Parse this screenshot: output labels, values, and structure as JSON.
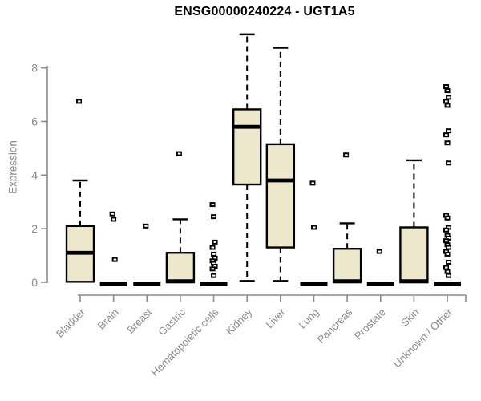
{
  "page": {
    "title": "ENSG00000240224 - UGT1A5"
  },
  "chart_data": {
    "type": "box",
    "title": "ENSG00000240224 - UGT1A5",
    "xlabel": "",
    "ylabel": "Expression",
    "ylim": [
      0,
      9.3
    ],
    "yticks": [
      0,
      2,
      4,
      6,
      8
    ],
    "grid": false,
    "legend": "none",
    "categories": [
      "Bladder",
      "Brain",
      "Breast",
      "Gastric",
      "Hematopoietic cells",
      "Kidney",
      "Liver",
      "Lung",
      "Pancreas",
      "Prostate",
      "Skin",
      "Unknown / Other"
    ],
    "series": [
      {
        "category": "Bladder",
        "q1": 0.02,
        "median": 1.1,
        "q3": 2.1,
        "whisker_low": 0.02,
        "whisker_high": 3.8,
        "outliers": [
          6.75
        ]
      },
      {
        "category": "Brain",
        "q1": 0,
        "median": 0,
        "q3": 0,
        "whisker_low": 0,
        "whisker_high": 0,
        "outliers": [
          2.55,
          2.35,
          0.85
        ]
      },
      {
        "category": "Breast",
        "q1": 0,
        "median": 0,
        "q3": 0,
        "whisker_low": 0,
        "whisker_high": 0,
        "outliers": [
          2.1
        ]
      },
      {
        "category": "Gastric",
        "q1": 0,
        "median": 0.04,
        "q3": 1.1,
        "whisker_low": 0,
        "whisker_high": 2.35,
        "outliers": [
          4.8
        ]
      },
      {
        "category": "Hematopoietic cells",
        "q1": 0,
        "median": 0,
        "q3": 0,
        "whisker_low": 0,
        "whisker_high": 0,
        "outliers": [
          2.9,
          2.45,
          1.5,
          1.3,
          1.05,
          0.9,
          0.8,
          0.7,
          0.6,
          0.5,
          0.25
        ]
      },
      {
        "category": "Kidney",
        "q1": 3.65,
        "median": 5.8,
        "q3": 6.45,
        "whisker_low": 0.05,
        "whisker_high": 9.25,
        "outliers": []
      },
      {
        "category": "Liver",
        "q1": 1.3,
        "median": 3.8,
        "q3": 5.15,
        "whisker_low": 0.05,
        "whisker_high": 8.75,
        "outliers": []
      },
      {
        "category": "Lung",
        "q1": 0,
        "median": 0,
        "q3": 0,
        "whisker_low": 0,
        "whisker_high": 0,
        "outliers": [
          3.7,
          2.05
        ]
      },
      {
        "category": "Pancreas",
        "q1": 0,
        "median": 0.04,
        "q3": 1.25,
        "whisker_low": 0,
        "whisker_high": 2.2,
        "outliers": [
          4.75
        ]
      },
      {
        "category": "Prostate",
        "q1": 0,
        "median": 0,
        "q3": 0,
        "whisker_low": 0,
        "whisker_high": 0,
        "outliers": [
          1.15
        ]
      },
      {
        "category": "Skin",
        "q1": 0,
        "median": 0.04,
        "q3": 2.05,
        "whisker_low": 0,
        "whisker_high": 4.55,
        "outliers": []
      },
      {
        "category": "Unknown / Other",
        "q1": 0,
        "median": 0,
        "q3": 0,
        "whisker_low": 0,
        "whisker_high": 0,
        "outliers": [
          7.3,
          7.15,
          6.9,
          6.75,
          6.6,
          5.65,
          5.5,
          5.2,
          4.45,
          2.5,
          2.4,
          2.05,
          1.95,
          1.75,
          1.65,
          1.55,
          1.4,
          1.3,
          1.15,
          1.05,
          0.75,
          0.55,
          0.4,
          0.25
        ]
      }
    ],
    "colors": {
      "box_fill": "#EDE8CC",
      "box_border": "#000000",
      "median": "#000000",
      "whisker": "#000000",
      "axis": "#8a8a8a",
      "tick_text": "#8a8a8a",
      "title": "#000000",
      "background": "#ffffff"
    }
  }
}
